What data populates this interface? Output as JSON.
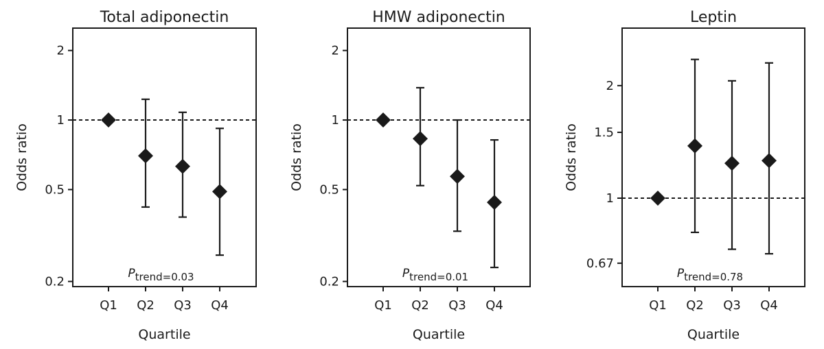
{
  "chart_data": [
    {
      "type": "scatter",
      "title": "Total adiponectin",
      "xlabel": "Quartile",
      "ylabel": "Odds ratio",
      "y_scale": "log",
      "ylim": [
        0.19,
        2.5
      ],
      "categories": [
        "Q1",
        "Q2",
        "Q3",
        "Q4"
      ],
      "yticks": [
        0.2,
        0.5,
        1,
        2
      ],
      "ytick_labels": [
        "0.2",
        "0.5",
        "1",
        "2"
      ],
      "reference_line": 1,
      "points": [
        {
          "x": "Q1",
          "y": 1.0,
          "lower": null,
          "upper": null
        },
        {
          "x": "Q2",
          "y": 0.7,
          "lower": 0.42,
          "upper": 1.23
        },
        {
          "x": "Q3",
          "y": 0.63,
          "lower": 0.38,
          "upper": 1.08
        },
        {
          "x": "Q4",
          "y": 0.49,
          "lower": 0.26,
          "upper": 0.92
        }
      ],
      "annotation": {
        "prefix": "P",
        "subscript": "trend",
        "value": "=0.03"
      }
    },
    {
      "type": "scatter",
      "title": "HMW adiponectin",
      "xlabel": "Quartile",
      "ylabel": "Odds ratio",
      "y_scale": "log",
      "ylim": [
        0.19,
        2.5
      ],
      "categories": [
        "Q1",
        "Q2",
        "Q3",
        "Q4"
      ],
      "yticks": [
        0.2,
        0.5,
        1,
        2
      ],
      "ytick_labels": [
        "0.2",
        "0.5",
        "1",
        "2"
      ],
      "reference_line": 1,
      "points": [
        {
          "x": "Q1",
          "y": 1.0,
          "lower": null,
          "upper": null
        },
        {
          "x": "Q2",
          "y": 0.83,
          "lower": 0.52,
          "upper": 1.38
        },
        {
          "x": "Q3",
          "y": 0.57,
          "lower": 0.33,
          "upper": 1.0
        },
        {
          "x": "Q4",
          "y": 0.44,
          "lower": 0.23,
          "upper": 0.82
        }
      ],
      "annotation": {
        "prefix": "P",
        "subscript": "trend",
        "value": "=0.01"
      }
    },
    {
      "type": "scatter",
      "title": "Leptin",
      "xlabel": "Quartile",
      "ylabel": "Odds ratio",
      "y_scale": "log",
      "ylim": [
        0.58,
        2.85
      ],
      "categories": [
        "Q1",
        "Q2",
        "Q3",
        "Q4"
      ],
      "yticks": [
        0.67,
        1,
        1.5,
        2
      ],
      "ytick_labels": [
        "0.67",
        "1",
        "1.5",
        "2"
      ],
      "reference_line": 1,
      "points": [
        {
          "x": "Q1",
          "y": 1.0,
          "lower": null,
          "upper": null
        },
        {
          "x": "Q2",
          "y": 1.38,
          "lower": 0.81,
          "upper": 2.35
        },
        {
          "x": "Q3",
          "y": 1.24,
          "lower": 0.73,
          "upper": 2.06
        },
        {
          "x": "Q4",
          "y": 1.26,
          "lower": 0.71,
          "upper": 2.3
        }
      ],
      "annotation": {
        "prefix": "P",
        "subscript": "trend",
        "value": "=0.78"
      }
    }
  ]
}
